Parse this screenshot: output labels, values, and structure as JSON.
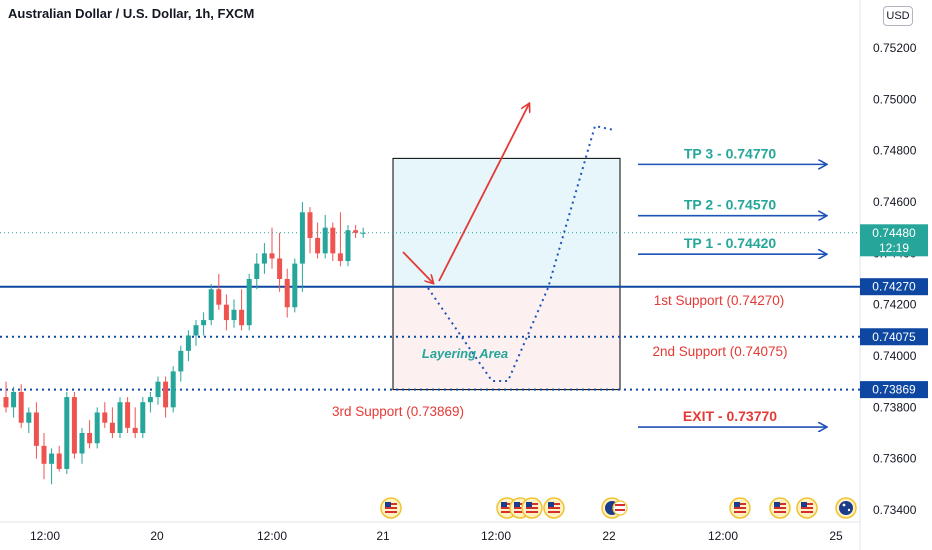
{
  "header": {
    "title": "Australian Dollar / U.S. Dollar, 1h, FXCM",
    "currency": "USD"
  },
  "chart_data": {
    "type": "candlestick",
    "symbol": "AUDUSD",
    "timeframe": "1h",
    "ylim": [
      0.7331,
      0.7535
    ],
    "y_ticks": [
      "0.75200",
      "0.75000",
      "0.74800",
      "0.74600",
      "0.74400",
      "0.74200",
      "0.74000",
      "0.73800",
      "0.73600",
      "0.73400"
    ],
    "x_ticks": [
      "12:00",
      "20",
      "12:00",
      "21",
      "12:00",
      "22",
      "12:00",
      "25"
    ],
    "candles": [
      {
        "o": 0.7384,
        "h": 0.739,
        "l": 0.7378,
        "c": 0.738
      },
      {
        "o": 0.738,
        "h": 0.7388,
        "l": 0.7376,
        "c": 0.7386
      },
      {
        "o": 0.7386,
        "h": 0.7389,
        "l": 0.7372,
        "c": 0.7374
      },
      {
        "o": 0.7374,
        "h": 0.738,
        "l": 0.737,
        "c": 0.7378
      },
      {
        "o": 0.7378,
        "h": 0.7382,
        "l": 0.736,
        "c": 0.7365
      },
      {
        "o": 0.7365,
        "h": 0.737,
        "l": 0.7352,
        "c": 0.7358
      },
      {
        "o": 0.7358,
        "h": 0.7364,
        "l": 0.735,
        "c": 0.7362
      },
      {
        "o": 0.7362,
        "h": 0.7365,
        "l": 0.7355,
        "c": 0.7356
      },
      {
        "o": 0.7356,
        "h": 0.7386,
        "l": 0.7354,
        "c": 0.7384
      },
      {
        "o": 0.7384,
        "h": 0.7386,
        "l": 0.736,
        "c": 0.7362
      },
      {
        "o": 0.7362,
        "h": 0.7372,
        "l": 0.7358,
        "c": 0.737
      },
      {
        "o": 0.737,
        "h": 0.7375,
        "l": 0.7364,
        "c": 0.7366
      },
      {
        "o": 0.7366,
        "h": 0.738,
        "l": 0.7364,
        "c": 0.7378
      },
      {
        "o": 0.7378,
        "h": 0.7382,
        "l": 0.7372,
        "c": 0.7374
      },
      {
        "o": 0.7374,
        "h": 0.738,
        "l": 0.7368,
        "c": 0.737
      },
      {
        "o": 0.737,
        "h": 0.7384,
        "l": 0.7368,
        "c": 0.7382
      },
      {
        "o": 0.7382,
        "h": 0.7384,
        "l": 0.737,
        "c": 0.7372
      },
      {
        "o": 0.7372,
        "h": 0.738,
        "l": 0.7368,
        "c": 0.737
      },
      {
        "o": 0.737,
        "h": 0.7384,
        "l": 0.7368,
        "c": 0.7382
      },
      {
        "o": 0.7382,
        "h": 0.7386,
        "l": 0.7378,
        "c": 0.7384
      },
      {
        "o": 0.7384,
        "h": 0.7392,
        "l": 0.7381,
        "c": 0.739
      },
      {
        "o": 0.739,
        "h": 0.7392,
        "l": 0.7376,
        "c": 0.738
      },
      {
        "o": 0.738,
        "h": 0.7396,
        "l": 0.7378,
        "c": 0.7394
      },
      {
        "o": 0.7394,
        "h": 0.7404,
        "l": 0.739,
        "c": 0.7402
      },
      {
        "o": 0.7402,
        "h": 0.741,
        "l": 0.7398,
        "c": 0.7408
      },
      {
        "o": 0.7408,
        "h": 0.7414,
        "l": 0.7404,
        "c": 0.7412
      },
      {
        "o": 0.7412,
        "h": 0.7417,
        "l": 0.7408,
        "c": 0.7414
      },
      {
        "o": 0.7414,
        "h": 0.7428,
        "l": 0.7412,
        "c": 0.7426
      },
      {
        "o": 0.7426,
        "h": 0.7432,
        "l": 0.7418,
        "c": 0.742
      },
      {
        "o": 0.742,
        "h": 0.7424,
        "l": 0.741,
        "c": 0.7414
      },
      {
        "o": 0.7414,
        "h": 0.7422,
        "l": 0.7411,
        "c": 0.7418
      },
      {
        "o": 0.7418,
        "h": 0.7426,
        "l": 0.741,
        "c": 0.7412
      },
      {
        "o": 0.7412,
        "h": 0.7432,
        "l": 0.741,
        "c": 0.743
      },
      {
        "o": 0.743,
        "h": 0.744,
        "l": 0.7426,
        "c": 0.7436
      },
      {
        "o": 0.7436,
        "h": 0.7444,
        "l": 0.7432,
        "c": 0.744
      },
      {
        "o": 0.744,
        "h": 0.745,
        "l": 0.7434,
        "c": 0.7438
      },
      {
        "o": 0.7438,
        "h": 0.7448,
        "l": 0.7425,
        "c": 0.743
      },
      {
        "o": 0.743,
        "h": 0.7434,
        "l": 0.7415,
        "c": 0.7419
      },
      {
        "o": 0.7419,
        "h": 0.7438,
        "l": 0.7417,
        "c": 0.7436
      },
      {
        "o": 0.7436,
        "h": 0.746,
        "l": 0.7425,
        "c": 0.7456
      },
      {
        "o": 0.7456,
        "h": 0.7458,
        "l": 0.744,
        "c": 0.7446
      },
      {
        "o": 0.7446,
        "h": 0.7452,
        "l": 0.7438,
        "c": 0.744
      },
      {
        "o": 0.744,
        "h": 0.7455,
        "l": 0.7438,
        "c": 0.745
      },
      {
        "o": 0.745,
        "h": 0.7452,
        "l": 0.7437,
        "c": 0.744
      },
      {
        "o": 0.744,
        "h": 0.7456,
        "l": 0.7435,
        "c": 0.7437
      },
      {
        "o": 0.7437,
        "h": 0.7451,
        "l": 0.7435,
        "c": 0.7449
      },
      {
        "o": 0.7449,
        "h": 0.7451,
        "l": 0.7446,
        "c": 0.7448
      },
      {
        "o": 0.7448,
        "h": 0.745,
        "l": 0.7446,
        "c": 0.7448
      }
    ],
    "current_price": {
      "value": "0.74480",
      "countdown": "12:19"
    },
    "levels": [
      {
        "name": "1st Support",
        "price": 0.7427,
        "label": "1st Support (0.74270)",
        "tag": "0.74270",
        "style": "solid"
      },
      {
        "name": "2nd Support",
        "price": 0.74075,
        "label": "2nd Support (0.74075)",
        "tag": "0.74075",
        "style": "dotted"
      },
      {
        "name": "3rd Support",
        "price": 0.73869,
        "label": "3rd Support (0.73869)",
        "tag": "0.73869",
        "style": "dotted"
      }
    ],
    "targets": [
      {
        "label": "TP 3 - 0.74770",
        "price": 0.7477
      },
      {
        "label": "TP 2 - 0.74570",
        "price": 0.7457
      },
      {
        "label": "TP 1 - 0.74420",
        "price": 0.7442
      },
      {
        "label": "EXIT - 0.73770",
        "price": 0.7377
      }
    ],
    "annotations": {
      "layering_area": "Layering Area"
    },
    "colors": {
      "up": "#26a69a",
      "down": "#ef5350",
      "level_line": "#0d47a1",
      "target_text": "#26a69a",
      "exit_text": "#e53935",
      "support_text": "#e53935",
      "arrow_blue": "#1e53b7",
      "arrow_red": "#e53935",
      "profit_zone": "#e6f6fb",
      "loss_zone": "#fdf0f0",
      "axis_text": "#131722",
      "price_tag": "#0d47a1"
    },
    "event_icons": [
      {
        "region": "us",
        "count": 1
      },
      {
        "region": "us",
        "count": 4
      },
      {
        "region": "au-us",
        "count": 1
      },
      {
        "region": "us",
        "count": 1
      },
      {
        "region": "us",
        "count": 2
      },
      {
        "region": "au",
        "count": 1
      }
    ]
  }
}
